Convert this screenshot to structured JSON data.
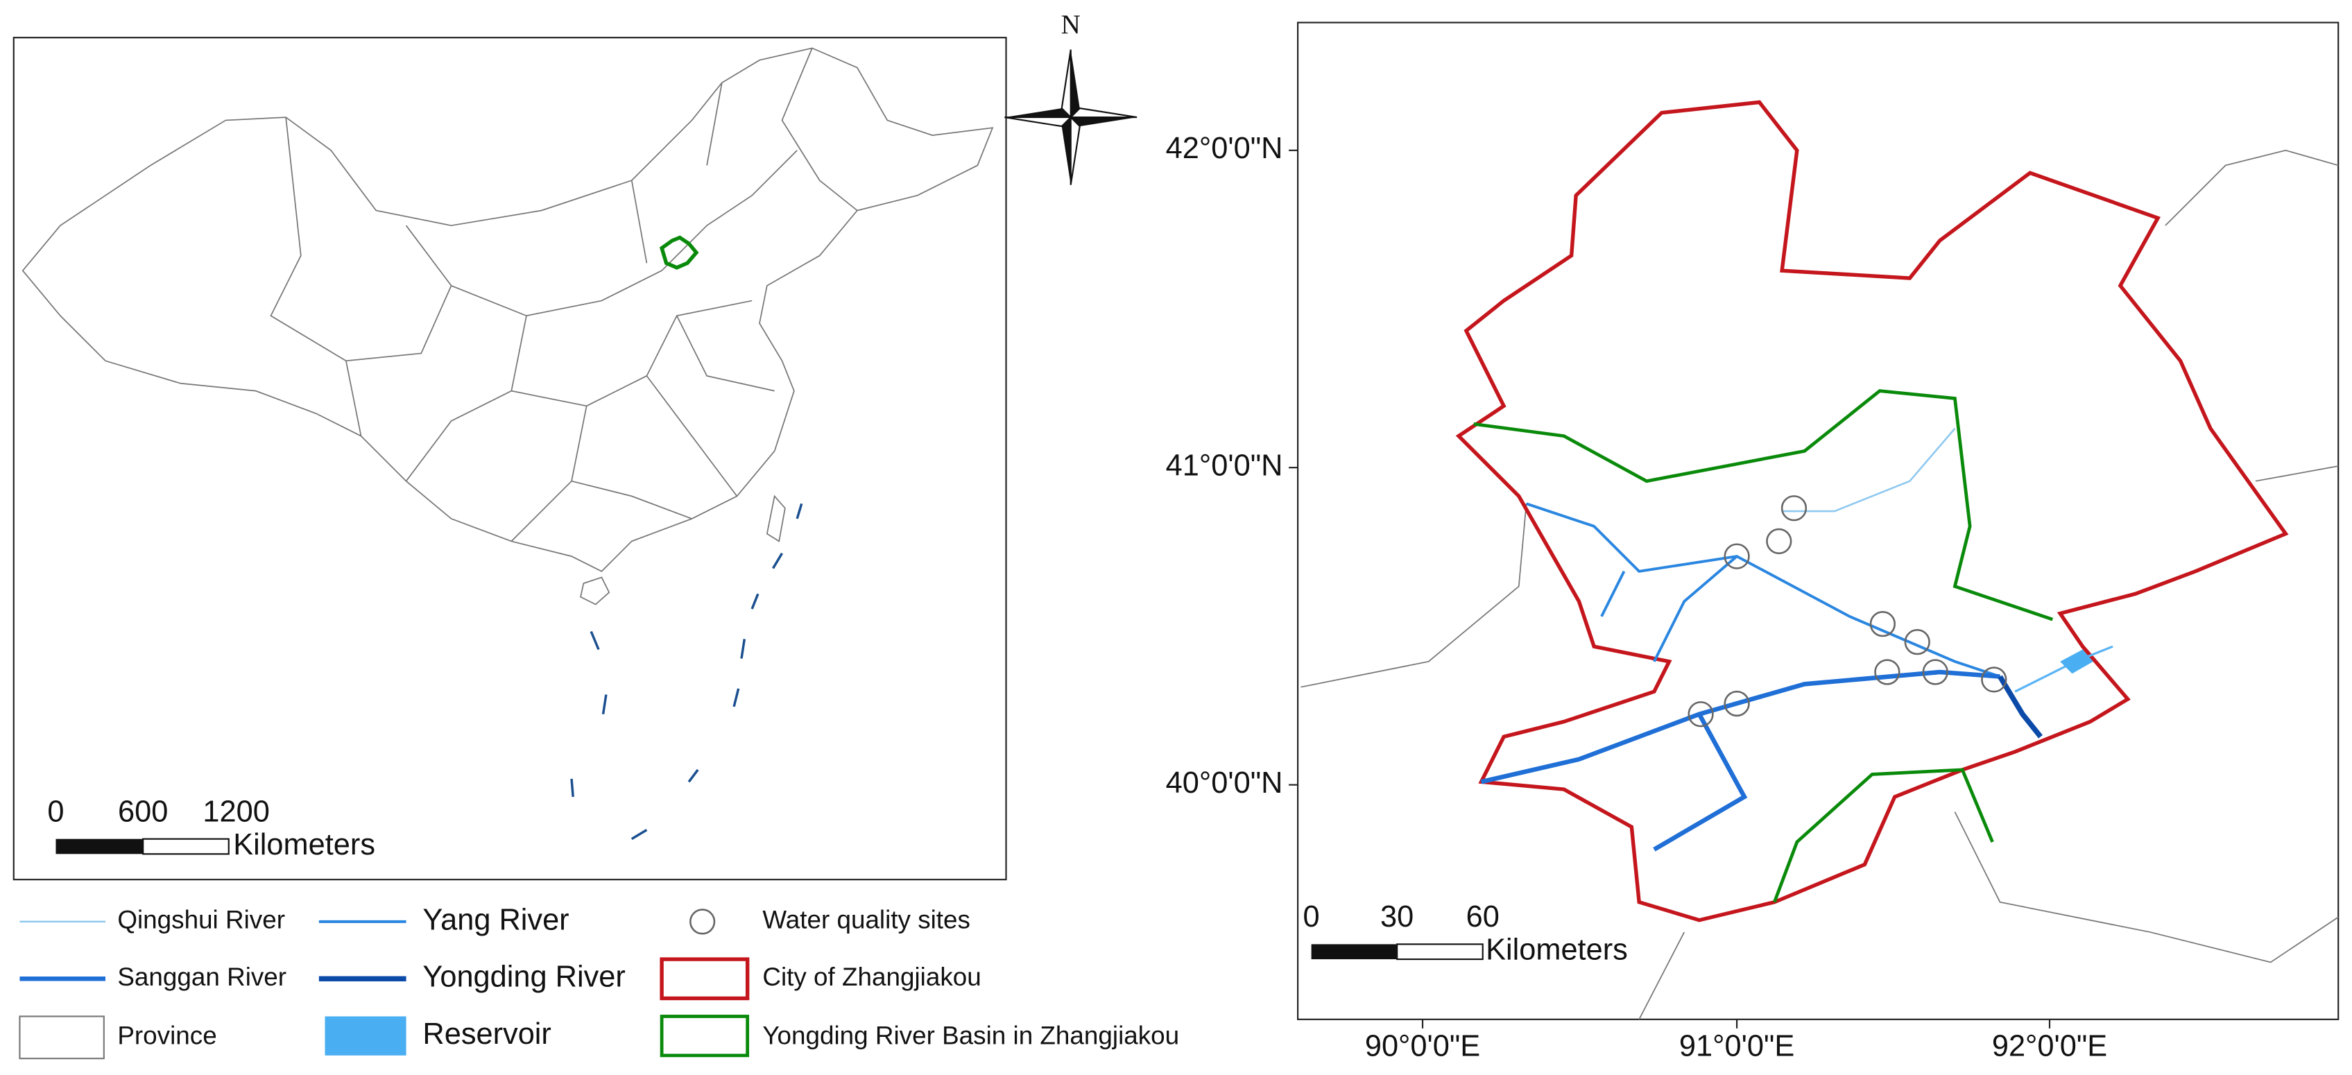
{
  "compass": {
    "label": "N"
  },
  "overview_map": {
    "scale_bar": {
      "ticks": [
        0,
        600,
        1200
      ],
      "unit": "Kilometers"
    }
  },
  "detail_map": {
    "latitude_labels": [
      "42°0'0\"N",
      "41°0'0\"N",
      "40°0'0\"N"
    ],
    "longitude_labels": [
      "90°0'0\"E",
      "91°0'0\"E",
      "92°0'0\"E"
    ],
    "scale_bar": {
      "ticks": [
        0,
        30,
        60
      ],
      "unit": "Kilometers"
    }
  },
  "legend": [
    "Qingshui River",
    "Yang River",
    "Water quality sites",
    "Sanggan River",
    "Yongding River",
    "City of Zhangjiakou",
    "Province",
    "Reservoir",
    "Yongding River Basin in Zhangjiakou"
  ]
}
